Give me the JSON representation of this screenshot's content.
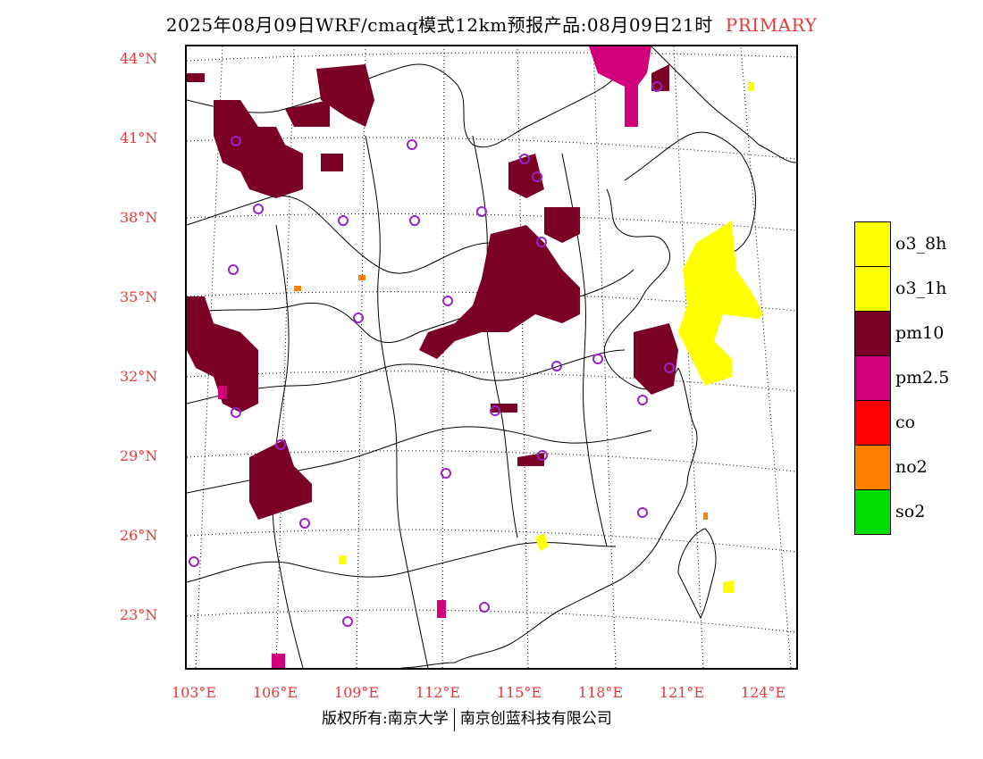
{
  "title": {
    "main": "2025年08月09日WRF/cmaq模式12km预报产品:08月09日21时",
    "tag": "PRIMARY"
  },
  "map": {
    "lat_labels": [
      "44°N",
      "41°N",
      "38°N",
      "35°N",
      "32°N",
      "29°N",
      "26°N",
      "23°N"
    ],
    "lon_labels": [
      "103°E",
      "106°E",
      "109°E",
      "112°E",
      "115°E",
      "118°E",
      "121°E",
      "124°E"
    ],
    "colors": {
      "label": "#e8393a",
      "station": "#9a22c8"
    }
  },
  "legend": [
    {
      "label": "o3_8h",
      "color": "#ffff00"
    },
    {
      "label": "o3_1h",
      "color": "#ffff00"
    },
    {
      "label": "pm10",
      "color": "#7a0026"
    },
    {
      "label": "pm2.5",
      "color": "#d0007a"
    },
    {
      "label": "co",
      "color": "#ff0000"
    },
    {
      "label": "no2",
      "color": "#ff7f00"
    },
    {
      "label": "so2",
      "color": "#00dd00"
    }
  ],
  "footer": {
    "left": "版权所有:南京大学",
    "right": "南京创蓝科技有限公司"
  }
}
